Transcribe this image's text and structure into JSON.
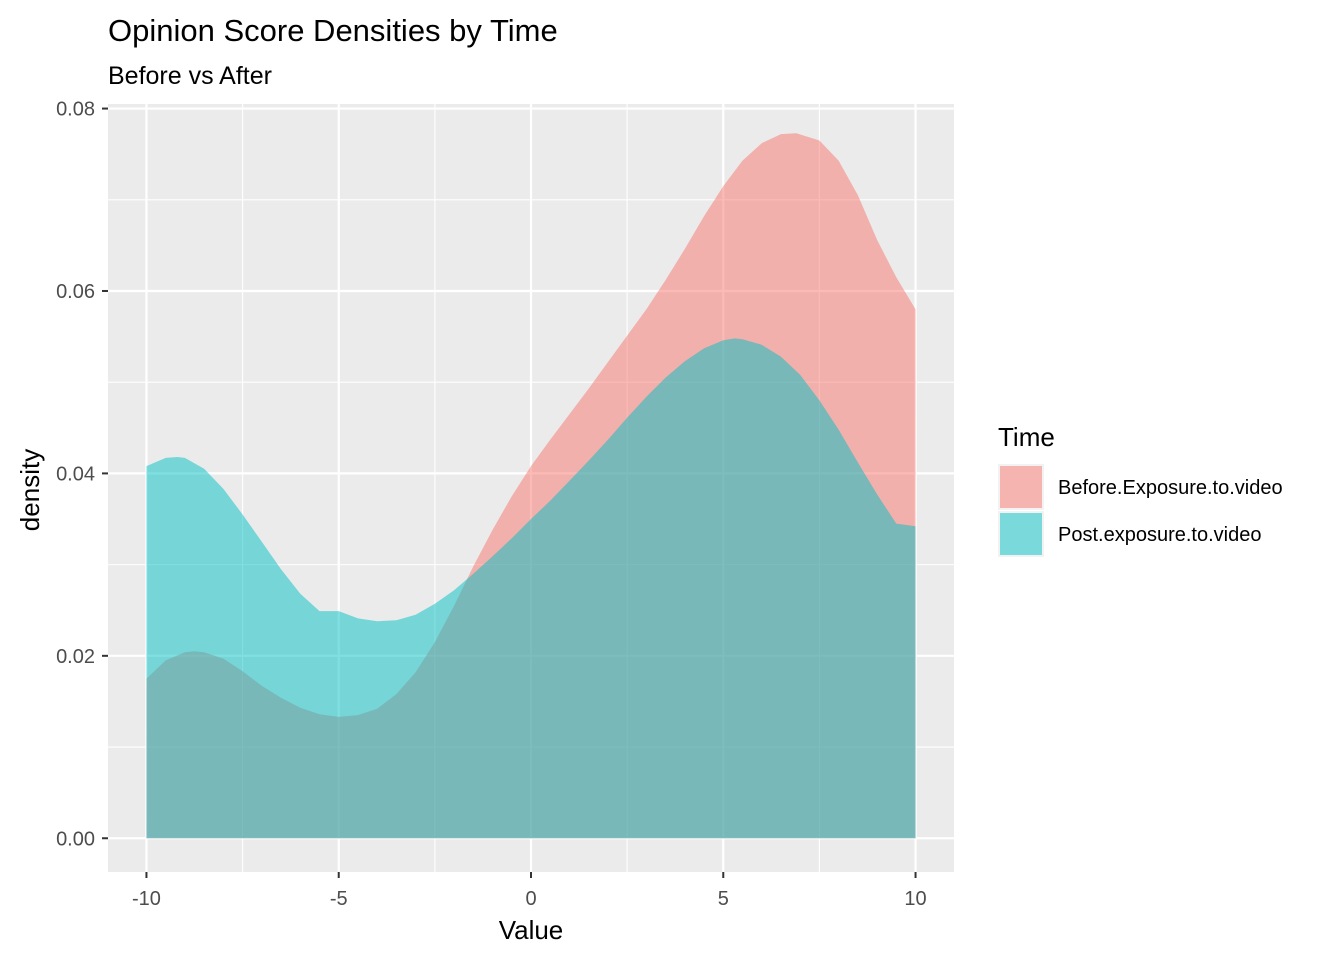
{
  "chart_data": {
    "type": "area",
    "title": "Opinion Score Densities by Time",
    "subtitle": "Before vs After",
    "xlabel": "Value",
    "ylabel": "density",
    "xlim": [
      -11,
      11
    ],
    "ylim": [
      -0.0037,
      0.0805
    ],
    "x_ticks": [
      -10,
      -5,
      0,
      5,
      10
    ],
    "x_tick_labels": [
      "-10",
      "-5",
      "0",
      "5",
      "10"
    ],
    "y_ticks": [
      0,
      0.02,
      0.04,
      0.06,
      0.08
    ],
    "y_tick_labels": [
      "0.00",
      "0.02",
      "0.04",
      "0.06",
      "0.08"
    ],
    "grid": true,
    "legend": {
      "title": "Time",
      "position": "right"
    },
    "series": [
      {
        "name": "Before.Exposure.to.video",
        "color": "#F8766D",
        "opacity": 0.5,
        "x": [
          -10,
          -9.5,
          -9,
          -8.75,
          -8.5,
          -8,
          -7.5,
          -7,
          -6.5,
          -6,
          -5.5,
          -5,
          -4.5,
          -4,
          -3.5,
          -3,
          -2.5,
          -2,
          -1.5,
          -1,
          -0.5,
          0,
          0.5,
          1,
          1.5,
          2,
          2.5,
          3,
          3.5,
          4,
          4.5,
          5,
          5.5,
          6,
          6.5,
          6.9,
          7.5,
          8,
          8.5,
          9,
          9.5,
          10
        ],
        "values": [
          0.0175,
          0.0195,
          0.0204,
          0.0205,
          0.0204,
          0.0197,
          0.0183,
          0.0167,
          0.0154,
          0.0143,
          0.0136,
          0.0133,
          0.0135,
          0.0142,
          0.0158,
          0.0182,
          0.0215,
          0.0255,
          0.0298,
          0.0338,
          0.0375,
          0.0408,
          0.0437,
          0.0465,
          0.0493,
          0.0522,
          0.0551,
          0.058,
          0.0612,
          0.0646,
          0.0682,
          0.0715,
          0.0743,
          0.0762,
          0.0772,
          0.0773,
          0.0765,
          0.0743,
          0.0705,
          0.0656,
          0.0615,
          0.058
        ]
      },
      {
        "name": "Post.exposure.to.video",
        "color": "#00BFC4",
        "opacity": 0.5,
        "x": [
          -10,
          -9.5,
          -9.2,
          -9,
          -8.5,
          -8,
          -7.5,
          -7,
          -6.5,
          -6,
          -5.5,
          -5,
          -4.5,
          -4,
          -3.5,
          -3,
          -2.5,
          -2,
          -1.5,
          -1,
          -0.5,
          0,
          0.5,
          1,
          1.5,
          2,
          2.5,
          3,
          3.5,
          4,
          4.5,
          5,
          5.3,
          5.5,
          6,
          6.5,
          7,
          7.5,
          8,
          8.5,
          9,
          9.5,
          10
        ],
        "values": [
          0.0408,
          0.0417,
          0.0418,
          0.0417,
          0.0405,
          0.0383,
          0.0355,
          0.0325,
          0.0295,
          0.0268,
          0.0249,
          0.0249,
          0.0241,
          0.0238,
          0.0239,
          0.0245,
          0.0257,
          0.0272,
          0.029,
          0.0309,
          0.0329,
          0.035,
          0.037,
          0.0392,
          0.0414,
          0.0437,
          0.0461,
          0.0484,
          0.0505,
          0.0523,
          0.0537,
          0.0546,
          0.0548,
          0.0547,
          0.0541,
          0.0528,
          0.0508,
          0.048,
          0.0448,
          0.0412,
          0.0377,
          0.0345,
          0.0342
        ]
      }
    ]
  }
}
